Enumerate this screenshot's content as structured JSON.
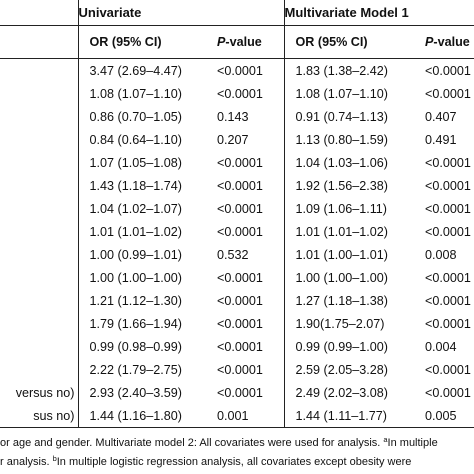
{
  "table": {
    "groups": {
      "univariate": "Univariate",
      "multivariate1": "Multivariate Model 1"
    },
    "headers": {
      "or_ci_1": "OR (95% CI)",
      "p_prefix_1": "P",
      "p_suffix_1": "-value",
      "or_ci_2": "OR (95% CI)",
      "p_prefix_2": "P",
      "p_suffix_2": "-value"
    },
    "rows": [
      {
        "label": "",
        "uni_or": "3.47 (2.69–4.47)",
        "uni_p": "<0.0001",
        "mv_or": "1.83 (1.38–2.42)",
        "mv_p": "<0.0001"
      },
      {
        "label": "",
        "uni_or": "1.08 (1.07–1.10)",
        "uni_p": "<0.0001",
        "mv_or": "1.08 (1.07–1.10)",
        "mv_p": "<0.0001"
      },
      {
        "label": "",
        "uni_or": "0.86 (0.70–1.05)",
        "uni_p": "0.143",
        "mv_or": "0.91 (0.74–1.13)",
        "mv_p": "0.407"
      },
      {
        "label": "",
        "uni_or": "0.84 (0.64–1.10)",
        "uni_p": "0.207",
        "mv_or": "1.13 (0.80–1.59)",
        "mv_p": "0.491"
      },
      {
        "label": "",
        "uni_or": "1.07 (1.05–1.08)",
        "uni_p": "<0.0001",
        "mv_or": "1.04 (1.03–1.06)",
        "mv_p": "<0.0001"
      },
      {
        "label": "",
        "uni_or": "1.43 (1.18–1.74)",
        "uni_p": "<0.0001",
        "mv_or": "1.92 (1.56–2.38)",
        "mv_p": "<0.0001"
      },
      {
        "label": "",
        "uni_or": "1.04 (1.02–1.07)",
        "uni_p": "<0.0001",
        "mv_or": "1.09 (1.06–1.11)",
        "mv_p": "<0.0001"
      },
      {
        "label": "",
        "uni_or": "1.01 (1.01–1.02)",
        "uni_p": "<0.0001",
        "mv_or": "1.01 (1.01–1.02)",
        "mv_p": "<0.0001"
      },
      {
        "label": "",
        "uni_or": "1.00 (0.99–1.01)",
        "uni_p": "0.532",
        "mv_or": "1.01 (1.00–1.01)",
        "mv_p": "0.008"
      },
      {
        "label": "",
        "uni_or": "1.00 (1.00–1.00)",
        "uni_p": "<0.0001",
        "mv_or": "1.00 (1.00–1.00)",
        "mv_p": "<0.0001"
      },
      {
        "label": "",
        "uni_or": "1.21 (1.12–1.30)",
        "uni_p": "<0.0001",
        "mv_or": "1.27 (1.18–1.38)",
        "mv_p": "<0.0001"
      },
      {
        "label": "",
        "uni_or": "1.79 (1.66–1.94)",
        "uni_p": "<0.0001",
        "mv_or": "1.90(1.75–2.07)",
        "mv_p": "<0.0001"
      },
      {
        "label": "",
        "uni_or": "0.99 (0.98–0.99)",
        "uni_p": "<0.0001",
        "mv_or": "0.99 (0.99–1.00)",
        "mv_p": "0.004"
      },
      {
        "label": "",
        "uni_or": "2.22 (1.79–2.75)",
        "uni_p": "<0.0001",
        "mv_or": "2.59 (2.05–3.28)",
        "mv_p": "<0.0001"
      },
      {
        "label": "versus no)",
        "uni_or": "2.93 (2.40–3.59)",
        "uni_p": "<0.0001",
        "mv_or": "2.49 (2.02–3.08)",
        "mv_p": "<0.0001"
      },
      {
        "label": "sus no)",
        "uni_or": "1.44 (1.16–1.80)",
        "uni_p": "0.001",
        "mv_or": "1.44 (1.11–1.77)",
        "mv_p": "0.005"
      }
    ]
  },
  "footnote": {
    "line1_text": "or age and gender. Multivariate model 2: All covariates were used for analysis. ",
    "line1_sup": "a",
    "line1_tail": "In multiple",
    "line2_text": "r analysis. ",
    "line2_sup": "b",
    "line2_tail": "In multiple logistic regression analysis, all covariates except obesity were"
  }
}
